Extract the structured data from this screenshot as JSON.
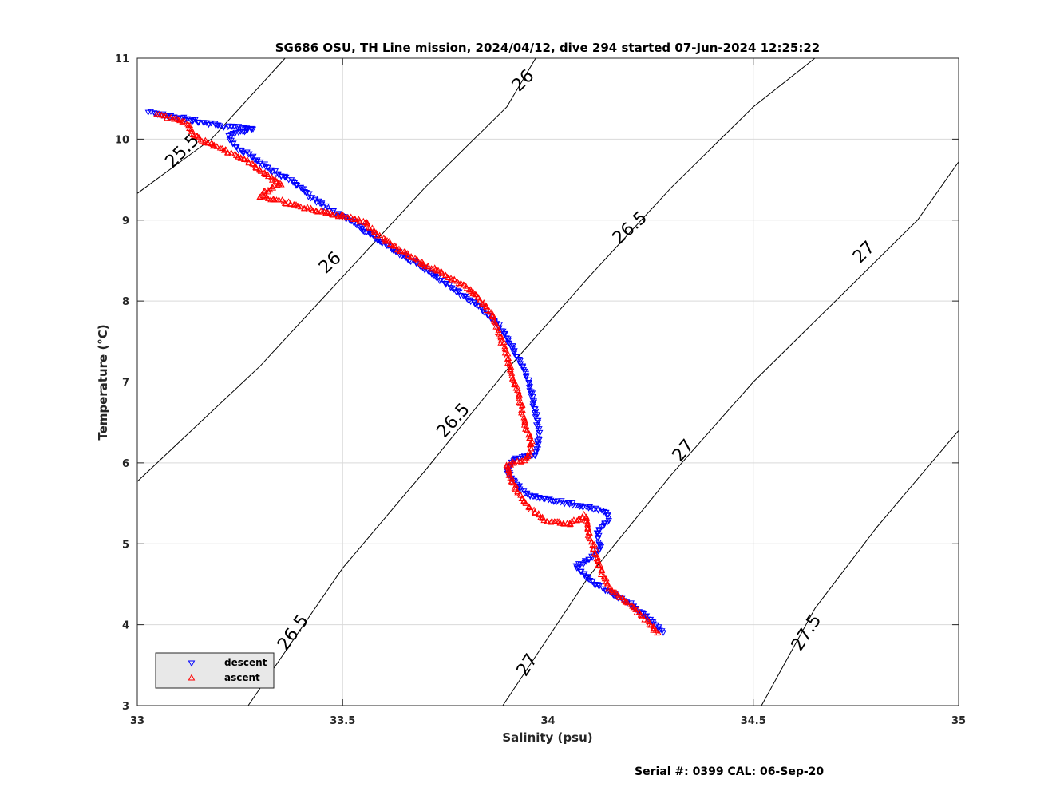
{
  "chart_data": {
    "type": "scatter",
    "title": "SG686 OSU, TH Line mission, 2024/04/12, dive 294 started 07-Jun-2024 12:25:22",
    "xlabel": "Salinity (psu)",
    "ylabel": "Temperature (°C)",
    "xlim": [
      33,
      35
    ],
    "ylim": [
      3,
      11
    ],
    "x_ticks": [
      "33",
      "33.5",
      "34",
      "34.5",
      "35"
    ],
    "y_ticks": [
      "3",
      "4",
      "5",
      "6",
      "7",
      "8",
      "9",
      "10",
      "11"
    ],
    "grid": true,
    "legend_position": "bottom-left",
    "contours": [
      {
        "label": "25.5",
        "points": [
          [
            33.0,
            9.33
          ],
          [
            33.18,
            10.0
          ],
          [
            33.36,
            11.0
          ]
        ]
      },
      {
        "label": "26",
        "points": [
          [
            33.0,
            5.77
          ],
          [
            33.3,
            7.2
          ],
          [
            33.5,
            8.3
          ],
          [
            33.7,
            9.4
          ],
          [
            33.9,
            10.4
          ],
          [
            33.97,
            11.0
          ]
        ]
      },
      {
        "label": "26.5",
        "points": [
          [
            33.27,
            3.0
          ],
          [
            33.5,
            4.7
          ],
          [
            33.7,
            5.9
          ],
          [
            33.9,
            7.15
          ],
          [
            34.1,
            8.3
          ],
          [
            34.3,
            9.4
          ],
          [
            34.5,
            10.4
          ],
          [
            34.65,
            11.0
          ]
        ]
      },
      {
        "label": "27",
        "points": [
          [
            33.89,
            3.0
          ],
          [
            34.1,
            4.6
          ],
          [
            34.3,
            5.85
          ],
          [
            34.5,
            7.0
          ],
          [
            34.7,
            8.0
          ],
          [
            34.9,
            9.0
          ],
          [
            35.0,
            9.72
          ]
        ]
      },
      {
        "label": "27.5",
        "points": [
          [
            34.52,
            3.0
          ],
          [
            34.65,
            4.2
          ],
          [
            34.8,
            5.2
          ],
          [
            35.0,
            6.4
          ]
        ]
      }
    ],
    "contour_labels": [
      {
        "text": "25.5",
        "x": 33.11,
        "y": 9.85,
        "angle": -45
      },
      {
        "text": "26",
        "x": 33.94,
        "y": 10.72,
        "angle": -45
      },
      {
        "text": "26",
        "x": 33.47,
        "y": 8.47,
        "angle": -43
      },
      {
        "text": "26.5",
        "x": 34.2,
        "y": 8.9,
        "angle": -42
      },
      {
        "text": "26.5",
        "x": 33.77,
        "y": 6.52,
        "angle": -48
      },
      {
        "text": "26.5",
        "x": 33.38,
        "y": 3.9,
        "angle": -54
      },
      {
        "text": "27",
        "x": 34.77,
        "y": 8.6,
        "angle": -45
      },
      {
        "text": "27",
        "x": 34.33,
        "y": 6.15,
        "angle": -50
      },
      {
        "text": "27",
        "x": 33.95,
        "y": 3.5,
        "angle": -57
      },
      {
        "text": "27.5",
        "x": 34.63,
        "y": 3.9,
        "angle": -57
      }
    ],
    "series": [
      {
        "name": "descent",
        "color": "#0000ff",
        "marker": "triangle-down",
        "path": [
          [
            33.03,
            10.33
          ],
          [
            33.2,
            10.17
          ],
          [
            33.24,
            10.15
          ],
          [
            33.28,
            10.12
          ],
          [
            33.22,
            10.05
          ],
          [
            33.24,
            9.9
          ],
          [
            33.28,
            9.78
          ],
          [
            33.33,
            9.6
          ],
          [
            33.38,
            9.48
          ],
          [
            33.42,
            9.3
          ],
          [
            33.47,
            9.12
          ],
          [
            33.52,
            9.0
          ],
          [
            33.56,
            8.85
          ],
          [
            33.6,
            8.7
          ],
          [
            33.65,
            8.55
          ],
          [
            33.7,
            8.4
          ],
          [
            33.74,
            8.25
          ],
          [
            33.8,
            8.05
          ],
          [
            33.84,
            7.9
          ],
          [
            33.88,
            7.7
          ],
          [
            33.91,
            7.45
          ],
          [
            33.93,
            7.25
          ],
          [
            33.95,
            7.05
          ],
          [
            33.96,
            6.85
          ],
          [
            33.97,
            6.6
          ],
          [
            33.98,
            6.35
          ],
          [
            33.97,
            6.1
          ],
          [
            33.92,
            6.05
          ],
          [
            33.9,
            5.9
          ],
          [
            33.92,
            5.75
          ],
          [
            33.95,
            5.6
          ],
          [
            34.0,
            5.55
          ],
          [
            34.05,
            5.5
          ],
          [
            34.1,
            5.45
          ],
          [
            34.14,
            5.4
          ],
          [
            34.15,
            5.3
          ],
          [
            34.12,
            5.15
          ],
          [
            34.13,
            4.95
          ],
          [
            34.1,
            4.8
          ],
          [
            34.07,
            4.72
          ],
          [
            34.1,
            4.55
          ],
          [
            34.15,
            4.4
          ],
          [
            34.2,
            4.25
          ],
          [
            34.24,
            4.1
          ],
          [
            34.27,
            3.97
          ],
          [
            34.28,
            3.88
          ]
        ]
      },
      {
        "name": "ascent",
        "color": "#ff0000",
        "marker": "triangle-up",
        "path": [
          [
            33.05,
            10.3
          ],
          [
            33.1,
            10.25
          ],
          [
            33.12,
            10.2
          ],
          [
            33.14,
            10.05
          ],
          [
            33.17,
            9.95
          ],
          [
            33.22,
            9.85
          ],
          [
            33.27,
            9.72
          ],
          [
            33.31,
            9.58
          ],
          [
            33.35,
            9.45
          ],
          [
            33.32,
            9.38
          ],
          [
            33.3,
            9.3
          ],
          [
            33.45,
            9.1
          ],
          [
            33.52,
            9.03
          ],
          [
            33.56,
            8.95
          ],
          [
            33.59,
            8.8
          ],
          [
            33.64,
            8.62
          ],
          [
            33.7,
            8.45
          ],
          [
            33.76,
            8.3
          ],
          [
            33.82,
            8.1
          ],
          [
            33.86,
            7.85
          ],
          [
            33.88,
            7.6
          ],
          [
            33.9,
            7.35
          ],
          [
            33.91,
            7.1
          ],
          [
            33.93,
            6.85
          ],
          [
            33.94,
            6.55
          ],
          [
            33.96,
            6.25
          ],
          [
            33.95,
            6.05
          ],
          [
            33.9,
            5.98
          ],
          [
            33.91,
            5.8
          ],
          [
            33.93,
            5.6
          ],
          [
            33.96,
            5.42
          ],
          [
            34.0,
            5.28
          ],
          [
            34.05,
            5.24
          ],
          [
            34.09,
            5.35
          ],
          [
            34.1,
            5.1
          ],
          [
            34.12,
            4.85
          ],
          [
            34.13,
            4.65
          ],
          [
            34.15,
            4.45
          ],
          [
            34.2,
            4.25
          ],
          [
            34.24,
            4.05
          ],
          [
            34.27,
            3.88
          ]
        ]
      }
    ],
    "footer": "Serial #: 0399  CAL: 06-Sep-20"
  }
}
